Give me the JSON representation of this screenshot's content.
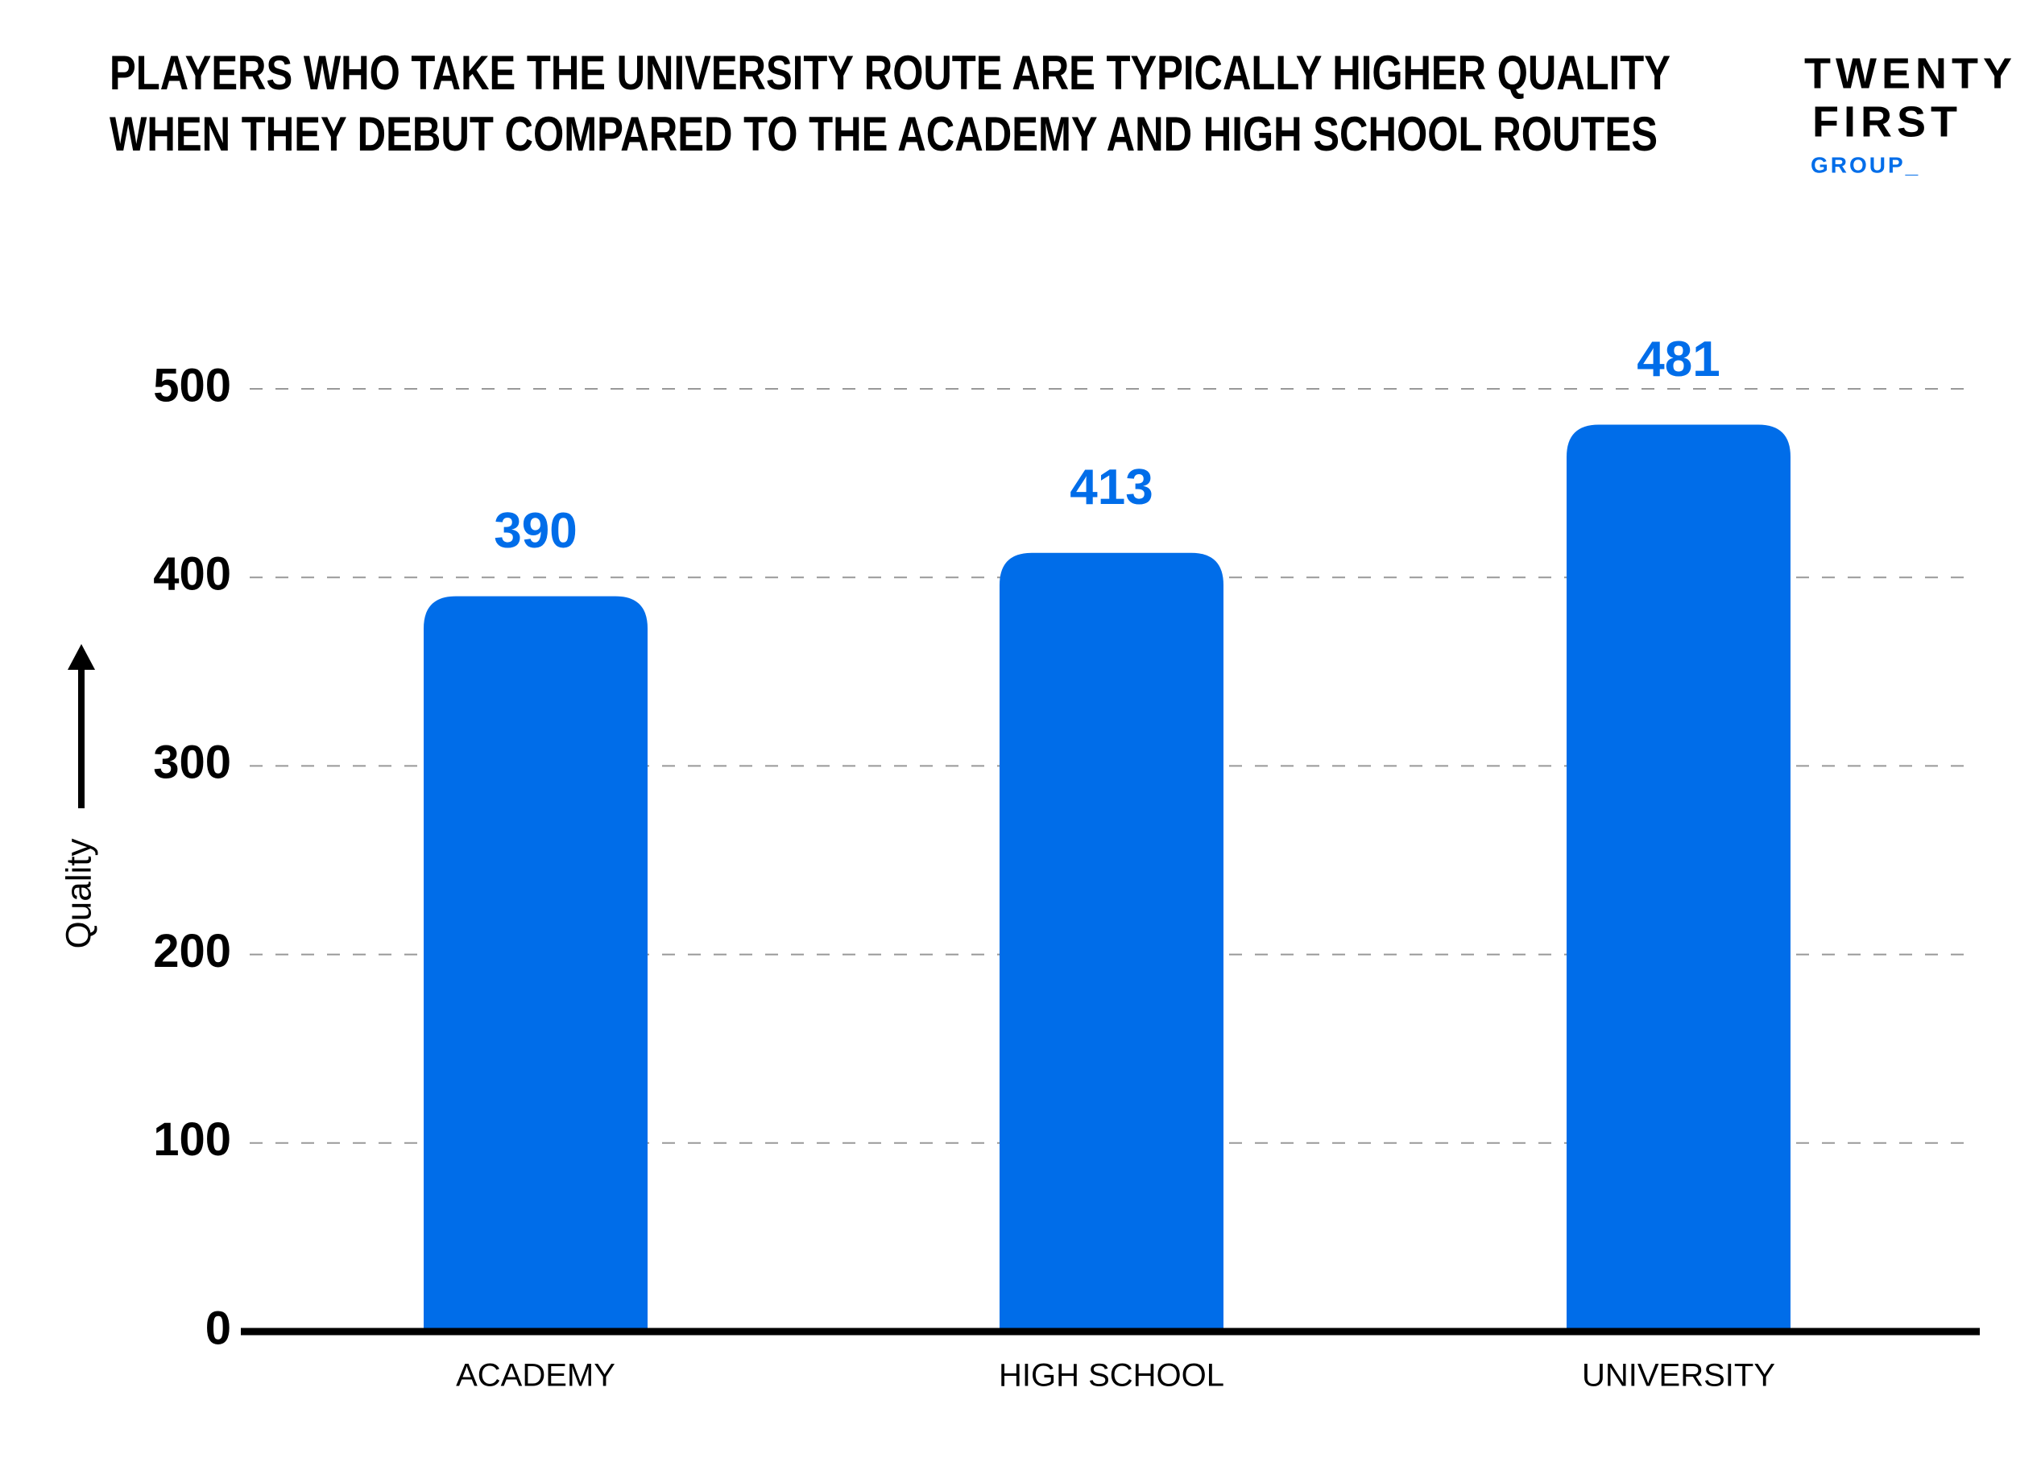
{
  "chart_data": {
    "type": "bar",
    "title": [
      "PLAYERS WHO TAKE THE UNIVERSITY ROUTE ARE TYPICALLY HIGHER QUALITY",
      "WHEN THEY DEBUT COMPARED TO THE ACADEMY AND HIGH SCHOOL ROUTES"
    ],
    "logo": [
      "TWENTY",
      "FIRST",
      "GROUP_"
    ],
    "ylabel": "Quality",
    "categories": [
      "ACADEMY",
      "HIGH SCHOOL",
      "UNIVERSITY"
    ],
    "values": [
      390,
      413,
      481
    ],
    "color": "#006de9",
    "ylim": [
      0,
      500
    ],
    "yticks": [
      0,
      100,
      200,
      300,
      400,
      500
    ],
    "grid": true
  }
}
